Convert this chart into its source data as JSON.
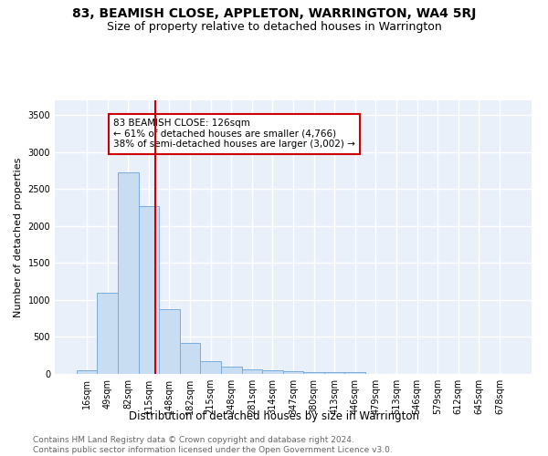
{
  "title1": "83, BEAMISH CLOSE, APPLETON, WARRINGTON, WA4 5RJ",
  "title2": "Size of property relative to detached houses in Warrington",
  "xlabel": "Distribution of detached houses by size in Warrington",
  "ylabel": "Number of detached properties",
  "bar_color": "#c9ddf2",
  "bar_edge_color": "#7aacdc",
  "bar_labels": [
    "16sqm",
    "49sqm",
    "82sqm",
    "115sqm",
    "148sqm",
    "182sqm",
    "215sqm",
    "248sqm",
    "281sqm",
    "314sqm",
    "347sqm",
    "380sqm",
    "413sqm",
    "446sqm",
    "479sqm",
    "513sqm",
    "546sqm",
    "579sqm",
    "612sqm",
    "645sqm",
    "678sqm"
  ],
  "bar_values": [
    55,
    1100,
    2730,
    2270,
    880,
    420,
    175,
    100,
    60,
    55,
    40,
    30,
    25,
    30,
    0,
    0,
    0,
    0,
    0,
    0,
    0
  ],
  "vline_x": 3.33,
  "vline_color": "#cc0000",
  "annotation_text": "83 BEAMISH CLOSE: 126sqm\n← 61% of detached houses are smaller (4,766)\n38% of semi-detached houses are larger (3,002) →",
  "annotation_box_color": "white",
  "annotation_box_edge": "#cc0000",
  "ylim": [
    0,
    3700
  ],
  "yticks": [
    0,
    500,
    1000,
    1500,
    2000,
    2500,
    3000,
    3500
  ],
  "bg_color": "#eaf0fa",
  "grid_color": "white",
  "footer": "Contains HM Land Registry data © Crown copyright and database right 2024.\nContains public sector information licensed under the Open Government Licence v3.0.",
  "title1_fontsize": 10,
  "title2_fontsize": 9,
  "xlabel_fontsize": 8.5,
  "ylabel_fontsize": 8,
  "tick_fontsize": 7,
  "footer_fontsize": 6.5,
  "annot_fontsize": 7.5
}
